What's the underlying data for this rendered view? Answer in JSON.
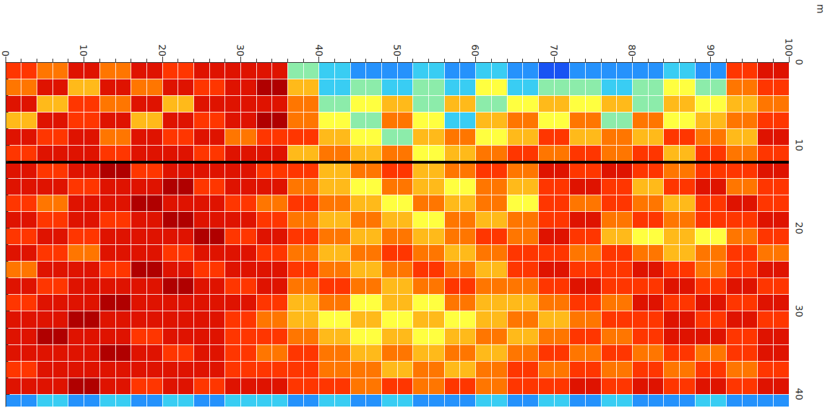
{
  "chart_data": {
    "type": "heatmap",
    "x_label": "m",
    "xlim": [
      0,
      100
    ],
    "xticks": [
      0,
      10,
      20,
      30,
      40,
      50,
      60,
      70,
      80,
      90,
      100
    ],
    "ylim": [
      0,
      41.5
    ],
    "yticks": [
      0,
      10,
      20,
      30,
      40
    ],
    "grid": true,
    "zlim": [
      0,
      10
    ],
    "reference_line": {
      "y": 12,
      "color": "#000000"
    },
    "x": [
      2,
      6,
      10,
      14,
      18,
      22,
      26,
      30,
      34,
      38,
      42,
      46,
      50,
      54,
      58,
      62,
      66,
      70,
      74,
      78,
      82,
      86,
      90,
      94,
      98
    ],
    "y": [
      1,
      3,
      5,
      7,
      9,
      11,
      13,
      15,
      17,
      19,
      21,
      23,
      25,
      27,
      29,
      31,
      33,
      35,
      37,
      39,
      41
    ],
    "cells": [
      [
        8,
        7,
        9,
        7,
        9,
        8,
        9,
        9,
        9,
        4,
        3,
        2,
        2,
        3,
        2,
        3,
        2,
        1,
        2,
        2,
        2,
        3,
        2,
        8,
        9
      ],
      [
        7,
        9,
        6,
        9,
        7,
        9,
        8,
        9,
        10,
        6,
        3,
        4,
        3,
        4,
        3,
        5,
        3,
        4,
        4,
        3,
        4,
        5,
        4,
        7,
        8
      ],
      [
        9,
        6,
        8,
        7,
        9,
        6,
        9,
        9,
        9,
        7,
        4,
        5,
        6,
        4,
        6,
        4,
        5,
        6,
        5,
        6,
        4,
        6,
        5,
        6,
        7
      ],
      [
        6,
        9,
        8,
        9,
        6,
        9,
        8,
        9,
        10,
        7,
        5,
        4,
        7,
        5,
        3,
        6,
        7,
        5,
        7,
        4,
        7,
        5,
        6,
        7,
        8
      ],
      [
        9,
        8,
        9,
        7,
        9,
        8,
        9,
        7,
        8,
        8,
        6,
        5,
        4,
        6,
        7,
        5,
        6,
        8,
        6,
        7,
        6,
        8,
        7,
        6,
        9
      ],
      [
        8,
        9,
        9,
        8,
        9,
        9,
        8,
        9,
        9,
        6,
        7,
        6,
        7,
        5,
        6,
        7,
        8,
        7,
        8,
        7,
        8,
        6,
        8,
        7,
        8
      ],
      [
        9,
        8,
        9,
        10,
        8,
        9,
        9,
        9,
        8,
        8,
        6,
        7,
        8,
        6,
        7,
        8,
        7,
        9,
        8,
        9,
        8,
        7,
        8,
        8,
        9
      ],
      [
        9,
        9,
        8,
        9,
        9,
        10,
        8,
        9,
        9,
        7,
        6,
        5,
        7,
        6,
        5,
        7,
        6,
        8,
        9,
        8,
        6,
        8,
        9,
        7,
        8
      ],
      [
        8,
        7,
        9,
        9,
        10,
        9,
        9,
        8,
        7,
        8,
        7,
        6,
        5,
        7,
        6,
        7,
        5,
        8,
        7,
        8,
        7,
        6,
        8,
        9,
        8
      ],
      [
        9,
        8,
        9,
        8,
        9,
        10,
        9,
        9,
        8,
        7,
        6,
        7,
        6,
        5,
        7,
        6,
        7,
        8,
        9,
        7,
        8,
        7,
        8,
        8,
        9
      ],
      [
        8,
        9,
        8,
        9,
        9,
        9,
        10,
        8,
        9,
        8,
        7,
        6,
        7,
        6,
        7,
        8,
        7,
        9,
        8,
        6,
        5,
        6,
        5,
        7,
        8
      ],
      [
        9,
        8,
        7,
        9,
        9,
        8,
        9,
        9,
        8,
        7,
        6,
        7,
        8,
        7,
        6,
        7,
        8,
        8,
        7,
        8,
        7,
        6,
        7,
        8,
        7
      ],
      [
        7,
        9,
        9,
        8,
        10,
        9,
        8,
        9,
        9,
        8,
        7,
        6,
        7,
        8,
        7,
        6,
        8,
        9,
        8,
        8,
        9,
        8,
        7,
        8,
        9
      ],
      [
        9,
        8,
        9,
        9,
        9,
        10,
        9,
        8,
        9,
        7,
        8,
        7,
        6,
        7,
        8,
        7,
        7,
        8,
        9,
        8,
        8,
        9,
        8,
        9,
        8
      ],
      [
        8,
        9,
        9,
        10,
        9,
        9,
        9,
        9,
        8,
        6,
        7,
        5,
        6,
        5,
        7,
        6,
        6,
        7,
        8,
        7,
        9,
        8,
        9,
        8,
        9
      ],
      [
        9,
        9,
        10,
        9,
        9,
        9,
        9,
        8,
        7,
        6,
        5,
        6,
        5,
        6,
        5,
        6,
        7,
        6,
        7,
        8,
        8,
        9,
        8,
        9,
        8
      ],
      [
        9,
        10,
        9,
        9,
        8,
        9,
        9,
        8,
        8,
        7,
        6,
        5,
        6,
        5,
        6,
        7,
        6,
        7,
        8,
        7,
        8,
        9,
        9,
        8,
        9
      ],
      [
        9,
        9,
        9,
        10,
        9,
        8,
        9,
        8,
        7,
        8,
        7,
        6,
        7,
        6,
        7,
        6,
        7,
        8,
        7,
        8,
        7,
        8,
        7,
        8,
        9
      ],
      [
        8,
        9,
        9,
        9,
        9,
        9,
        9,
        8,
        8,
        8,
        7,
        7,
        6,
        7,
        6,
        7,
        8,
        7,
        8,
        7,
        8,
        7,
        8,
        7,
        8
      ],
      [
        9,
        9,
        10,
        9,
        8,
        9,
        8,
        9,
        9,
        8,
        8,
        7,
        8,
        7,
        8,
        7,
        8,
        8,
        9,
        8,
        9,
        8,
        9,
        8,
        9
      ],
      [
        2,
        3,
        2,
        3,
        2,
        3,
        2,
        3,
        3,
        2,
        3,
        2,
        3,
        2,
        2,
        3,
        2,
        3,
        2,
        3,
        2,
        2,
        3,
        2,
        2
      ]
    ]
  }
}
